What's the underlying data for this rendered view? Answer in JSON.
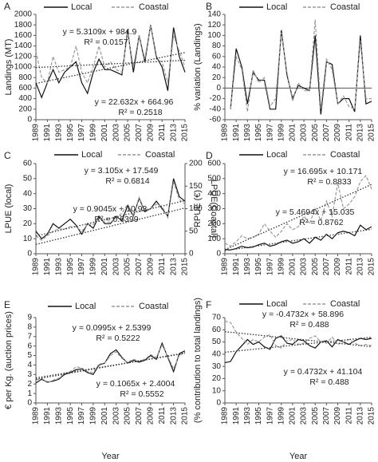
{
  "chart_data": [
    {
      "type": "line",
      "panel": "A",
      "ylabel": "Landings (MT)",
      "x": [
        1989,
        1990,
        1991,
        1992,
        1993,
        1994,
        1995,
        1996,
        1997,
        1998,
        1999,
        2000,
        2001,
        2002,
        2003,
        2004,
        2005,
        2006,
        2007,
        2008,
        2009,
        2010,
        2011,
        2012,
        2013,
        2014,
        2015
      ],
      "xlim": [
        1989,
        2015
      ],
      "xticks": [
        1989,
        1991,
        1993,
        1995,
        1997,
        1999,
        2001,
        2003,
        2005,
        2007,
        2009,
        2011,
        2013,
        2015
      ],
      "ylim": [
        0,
        2000
      ],
      "yticks": [
        0,
        200,
        400,
        600,
        800,
        1000,
        1200,
        1400,
        1600,
        1800,
        2000
      ],
      "series": [
        {
          "name": "Local",
          "color": "#111111",
          "dash": false,
          "values": [
            700,
            420,
            700,
            950,
            700,
            900,
            1000,
            1100,
            700,
            500,
            900,
            1150,
            950,
            950,
            900,
            850,
            1700,
            900,
            1600,
            1100,
            1800,
            1200,
            1000,
            550,
            1750,
            1200,
            900
          ]
        },
        {
          "name": "Coastal",
          "color": "#999999",
          "dash": true,
          "values": [
            1300,
            800,
            700,
            1200,
            900,
            950,
            1000,
            1400,
            900,
            700,
            1000,
            1400,
            1000,
            1100,
            950,
            900,
            1650,
            1000,
            1600,
            1150,
            1800,
            1150,
            1100,
            700,
            1600,
            1300,
            1000
          ]
        }
      ],
      "trends": [
        {
          "series": 1,
          "slope": 5.3109,
          "intercept": 984.9,
          "label": "y = 5.3109x + 984.9",
          "r2": "R² = 0.0157"
        },
        {
          "series": 0,
          "slope": 22.632,
          "intercept": 664.96,
          "label": "y = 22.632x + 664.96",
          "r2": "R² = 0.2518"
        }
      ]
    },
    {
      "type": "line",
      "panel": "B",
      "ylabel": "% variation (Landings)",
      "x": [
        1989,
        1990,
        1991,
        1992,
        1993,
        1994,
        1995,
        1996,
        1997,
        1998,
        1999,
        2000,
        2001,
        2002,
        2003,
        2004,
        2005,
        2006,
        2007,
        2008,
        2009,
        2010,
        2011,
        2012,
        2013,
        2014,
        2015
      ],
      "xlim": [
        1989,
        2015
      ],
      "xticks": [
        1989,
        1991,
        1993,
        1995,
        1997,
        1999,
        2001,
        2003,
        2005,
        2007,
        2009,
        2011,
        2013,
        2015
      ],
      "ylim": [
        -60,
        140
      ],
      "yticks": [
        -60,
        -40,
        -20,
        0,
        20,
        40,
        60,
        80,
        100,
        120,
        140
      ],
      "series": [
        {
          "name": "Local",
          "color": "#111111",
          "dash": false,
          "values": [
            null,
            -40,
            75,
            40,
            -30,
            30,
            15,
            15,
            -40,
            -40,
            110,
            25,
            -20,
            5,
            0,
            -5,
            100,
            -50,
            50,
            45,
            -30,
            -20,
            -20,
            -45,
            100,
            -30,
            -25
          ]
        },
        {
          "name": "Coastal",
          "color": "#999999",
          "dash": true,
          "values": [
            null,
            -40,
            60,
            35,
            -45,
            35,
            10,
            20,
            -35,
            -20,
            105,
            30,
            -25,
            10,
            -5,
            -5,
            130,
            -40,
            55,
            35,
            -30,
            -15,
            -35,
            -40,
            90,
            -20,
            -20
          ]
        }
      ],
      "trends": []
    },
    {
      "type": "line",
      "panel": "C",
      "ylabel": "LPUE (local)",
      "y2label": "LPUE(Coastal)",
      "x": [
        1989,
        1990,
        1991,
        1992,
        1993,
        1994,
        1995,
        1996,
        1997,
        1998,
        1999,
        2000,
        2001,
        2002,
        2003,
        2004,
        2005,
        2006,
        2007,
        2008,
        2009,
        2010,
        2011,
        2012,
        2013,
        2014,
        2015
      ],
      "xlim": [
        1989,
        2015
      ],
      "xticks": [
        1989,
        1991,
        1993,
        1995,
        1997,
        1999,
        2001,
        2003,
        2005,
        2007,
        2009,
        2011,
        2013,
        2015
      ],
      "ylim": [
        0,
        60
      ],
      "yticks": [
        0,
        10,
        20,
        30,
        40,
        50,
        60
      ],
      "y2lim": [
        0,
        200
      ],
      "y2ticks": [
        0,
        50,
        100,
        150,
        200
      ],
      "series": [
        {
          "name": "Local",
          "color": "#111111",
          "dash": false,
          "values": [
            15,
            10,
            13,
            20,
            17,
            20,
            23,
            19,
            13,
            20,
            17,
            25,
            20,
            20,
            25,
            22,
            32,
            25,
            37,
            28,
            30,
            35,
            30,
            25,
            50,
            38,
            35
          ]
        },
        {
          "name": "Coastal",
          "color": "#999999",
          "dash": true,
          "axis": "y2",
          "values": [
            40,
            30,
            40,
            50,
            55,
            55,
            60,
            60,
            50,
            65,
            65,
            80,
            70,
            70,
            80,
            90,
            110,
            85,
            125,
            95,
            100,
            110,
            105,
            80,
            160,
            120,
            110
          ]
        }
      ],
      "trends": [
        {
          "series": 1,
          "axis": "y2",
          "slope": 3.105,
          "intercept": 17.549,
          "label": "y = 3.105x + 17.549",
          "r2": "R² = 0.6814"
        },
        {
          "series": 0,
          "slope": 0.9045,
          "intercept": 10.93,
          "label": "y = 0.9045x + 10.93",
          "r2": "R² = 0.6399"
        }
      ]
    },
    {
      "type": "line",
      "panel": "D",
      "ylabel": "RPUE (€)",
      "x": [
        1989,
        1990,
        1991,
        1992,
        1993,
        1994,
        1995,
        1996,
        1997,
        1998,
        1999,
        2000,
        2001,
        2002,
        2003,
        2004,
        2005,
        2006,
        2007,
        2008,
        2009,
        2010,
        2011,
        2012,
        2013,
        2014,
        2015
      ],
      "xlim": [
        1989,
        2015
      ],
      "xticks": [
        1989,
        1991,
        1993,
        1995,
        1997,
        1999,
        2001,
        2003,
        2005,
        2007,
        2009,
        2011,
        2013,
        2015
      ],
      "ylim": [
        0,
        600
      ],
      "yticks": [
        0,
        100,
        200,
        300,
        400,
        500,
        600
      ],
      "series": [
        {
          "name": "Local",
          "color": "#111111",
          "dash": false,
          "values": [
            30,
            25,
            35,
            50,
            40,
            45,
            60,
            70,
            50,
            60,
            80,
            90,
            70,
            80,
            100,
            70,
            110,
            90,
            130,
            100,
            140,
            150,
            140,
            120,
            190,
            160,
            180
          ]
        },
        {
          "name": "Coastal",
          "color": "#999999",
          "dash": true,
          "values": [
            70,
            50,
            80,
            120,
            100,
            110,
            130,
            200,
            150,
            110,
            150,
            200,
            160,
            180,
            250,
            200,
            300,
            220,
            350,
            250,
            470,
            300,
            330,
            380,
            480,
            520,
            430
          ]
        }
      ],
      "trends": [
        {
          "series": 1,
          "slope": 16.695,
          "intercept": 10.171,
          "label": "y = 16.695x + 10.171",
          "r2": "R² = 0.8833"
        },
        {
          "series": 0,
          "slope": 5.4694,
          "intercept": 15.035,
          "label": "y = 5.4694x + 15.035",
          "r2": "R² = 0.8762"
        }
      ]
    },
    {
      "type": "line",
      "panel": "E",
      "ylabel": "€ per Kg. (auction prices)",
      "xlabel": "Year",
      "x": [
        1989,
        1990,
        1991,
        1992,
        1993,
        1994,
        1995,
        1996,
        1997,
        1998,
        1999,
        2000,
        2001,
        2002,
        2003,
        2004,
        2005,
        2006,
        2007,
        2008,
        2009,
        2010,
        2011,
        2012,
        2013,
        2014,
        2015
      ],
      "xlim": [
        1989,
        2015
      ],
      "xticks": [
        1989,
        1991,
        1993,
        1995,
        1997,
        1999,
        2001,
        2003,
        2005,
        2007,
        2009,
        2011,
        2013,
        2015
      ],
      "ylim": [
        0,
        9
      ],
      "yticks": [
        0,
        1,
        2,
        3,
        4,
        5,
        6,
        7,
        8,
        9
      ],
      "series": [
        {
          "name": "Local",
          "color": "#111111",
          "dash": false,
          "values": [
            2.1,
            2.5,
            2.2,
            2.3,
            2.5,
            3.0,
            3.2,
            3.5,
            3.6,
            3.2,
            3.0,
            4.0,
            4.2,
            5.2,
            5.6,
            4.8,
            4.2,
            4.5,
            4.3,
            4.5,
            5.0,
            4.6,
            6.3,
            4.8,
            3.3,
            5.2,
            5.5
          ]
        },
        {
          "name": "Coastal",
          "color": "#999999",
          "dash": true,
          "values": [
            2.4,
            2.6,
            2.1,
            2.4,
            2.6,
            3.1,
            3.3,
            3.8,
            3.7,
            3.3,
            3.2,
            4.1,
            4.2,
            5.0,
            5.4,
            4.7,
            4.3,
            4.6,
            4.4,
            4.6,
            5.1,
            4.8,
            6.1,
            4.9,
            3.6,
            5.0,
            5.4
          ]
        }
      ],
      "trends": [
        {
          "series": 1,
          "slope": 0.0995,
          "intercept": 2.5399,
          "label": "y = 0.0995x + 2.5399",
          "r2": "R² = 0.5222"
        },
        {
          "series": 0,
          "slope": 0.1065,
          "intercept": 2.4004,
          "label": "y = 0.1065x + 2.4004",
          "r2": "R² = 0.5552"
        }
      ]
    },
    {
      "type": "line",
      "panel": "F",
      "ylabel": "(% contribution to total landings)",
      "xlabel": "Year",
      "x": [
        1989,
        1990,
        1991,
        1992,
        1993,
        1994,
        1995,
        1996,
        1997,
        1998,
        1999,
        2000,
        2001,
        2002,
        2003,
        2004,
        2005,
        2006,
        2007,
        2008,
        2009,
        2010,
        2011,
        2012,
        2013,
        2014,
        2015
      ],
      "xlim": [
        1989,
        2015
      ],
      "xticks": [
        1989,
        1991,
        1993,
        1995,
        1997,
        1999,
        2001,
        2003,
        2005,
        2007,
        2009,
        2011,
        2013,
        2015
      ],
      "ylim": [
        0,
        70
      ],
      "yticks": [
        0,
        10,
        20,
        30,
        40,
        50,
        60,
        70
      ],
      "series": [
        {
          "name": "Local",
          "color": "#111111",
          "dash": false,
          "values": [
            33,
            34,
            42,
            47,
            52,
            48,
            50,
            46,
            44,
            53,
            55,
            49,
            48,
            52,
            51,
            47,
            45,
            50,
            51,
            46,
            52,
            50,
            48,
            51,
            53,
            52,
            53
          ]
        },
        {
          "name": "Coastal",
          "color": "#999999",
          "dash": true,
          "values": [
            67,
            66,
            58,
            53,
            48,
            52,
            50,
            54,
            56,
            47,
            45,
            51,
            52,
            48,
            49,
            53,
            55,
            50,
            49,
            54,
            48,
            50,
            52,
            49,
            47,
            48,
            47
          ]
        }
      ],
      "trends": [
        {
          "series": 1,
          "slope": -0.4732,
          "intercept": 58.896,
          "label": "y = -0.4732x + 58.896",
          "r2": "R² = 0.488"
        },
        {
          "series": 0,
          "slope": 0.4732,
          "intercept": 41.104,
          "label": "y = 0.4732x + 41.104",
          "r2": "R² = 0.488"
        }
      ]
    }
  ]
}
